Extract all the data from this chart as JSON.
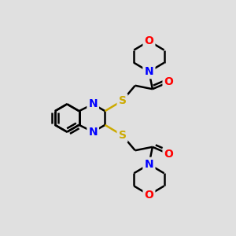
{
  "background_color": "#e0e0e0",
  "bond_color": "#000000",
  "bond_width": 1.8,
  "atom_colors": {
    "N": "#0000ff",
    "O": "#ff0000",
    "S": "#ccaa00",
    "C": "#000000"
  },
  "font_size": 10,
  "fig_width": 3.0,
  "fig_height": 3.0,
  "dpi": 100
}
